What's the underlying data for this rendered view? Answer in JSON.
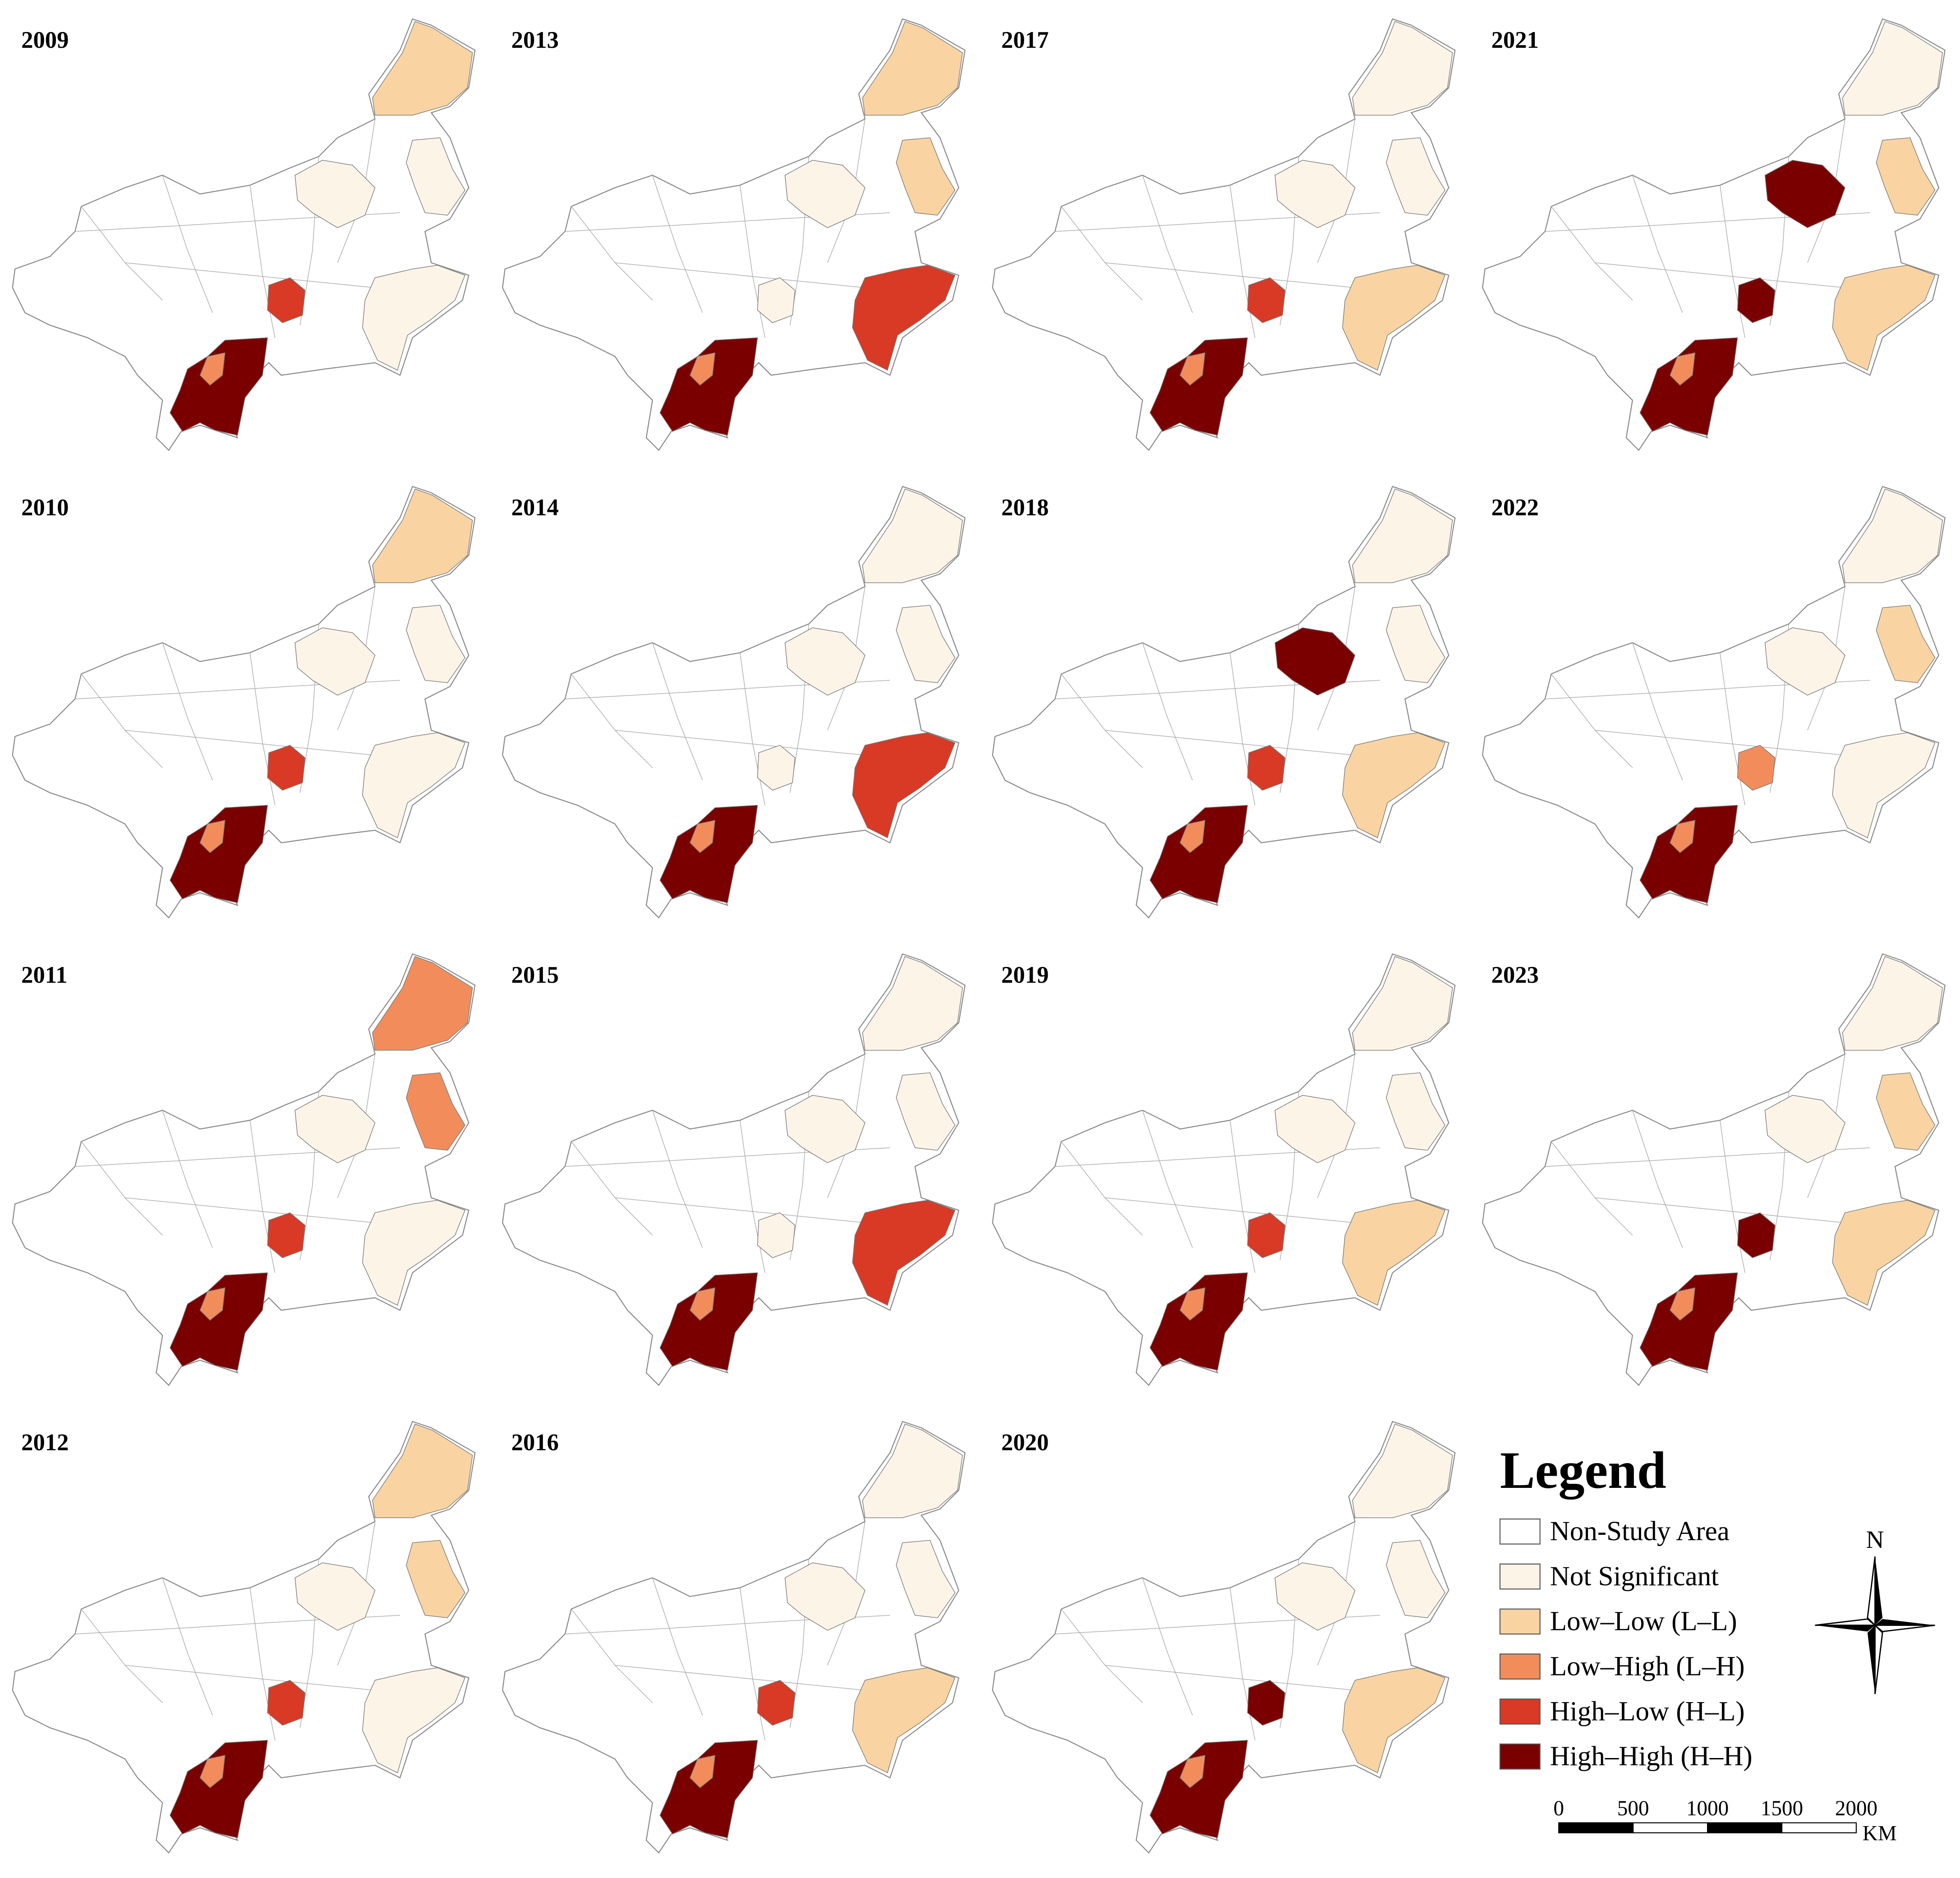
{
  "panels": [
    {
      "title": "2009",
      "classes": [
        2,
        1,
        1,
        4,
        5,
        1
      ]
    },
    {
      "title": "2013",
      "classes": [
        2,
        2,
        1,
        1,
        5,
        4
      ]
    },
    {
      "title": "2017",
      "classes": [
        1,
        1,
        1,
        4,
        5,
        2
      ]
    },
    {
      "title": "2021",
      "classes": [
        1,
        2,
        5,
        5,
        5,
        2
      ]
    },
    {
      "title": "2010",
      "classes": [
        2,
        1,
        1,
        4,
        5,
        1
      ]
    },
    {
      "title": "2014",
      "classes": [
        1,
        1,
        1,
        1,
        5,
        4
      ]
    },
    {
      "title": "2018",
      "classes": [
        1,
        1,
        5,
        4,
        5,
        2
      ]
    },
    {
      "title": "2022",
      "classes": [
        1,
        2,
        1,
        3,
        5,
        1
      ]
    },
    {
      "title": "2011",
      "classes": [
        3,
        3,
        1,
        4,
        5,
        1
      ]
    },
    {
      "title": "2015",
      "classes": [
        1,
        1,
        1,
        1,
        5,
        4
      ]
    },
    {
      "title": "2019",
      "classes": [
        1,
        1,
        1,
        4,
        5,
        2
      ]
    },
    {
      "title": "2023",
      "classes": [
        1,
        2,
        1,
        5,
        5,
        2
      ]
    },
    {
      "title": "2012",
      "classes": [
        2,
        2,
        1,
        4,
        5,
        1
      ]
    },
    {
      "title": "2016",
      "classes": [
        1,
        1,
        1,
        4,
        5,
        2
      ]
    },
    {
      "title": "2020",
      "classes": [
        1,
        1,
        1,
        5,
        5,
        2
      ]
    }
  ],
  "legend": {
    "title": "Legend",
    "items": [
      {
        "label": "Non-Study Area",
        "color": "#ffffff"
      },
      {
        "label": "Not Significant",
        "color": "#fdf4e8"
      },
      {
        "label": "Low–Low (L–L)",
        "color": "#f9d4a2"
      },
      {
        "label": "Low–High (L–H)",
        "color": "#f28d5b"
      },
      {
        "label": "High–Low (H–L)",
        "color": "#d83a25"
      },
      {
        "label": "High–High (H–H)",
        "color": "#7a0000"
      }
    ]
  },
  "compass": {
    "label": "N"
  },
  "scale_bar": {
    "ticks": [
      0,
      500,
      1000,
      1500,
      2000
    ],
    "unit": "KM"
  }
}
